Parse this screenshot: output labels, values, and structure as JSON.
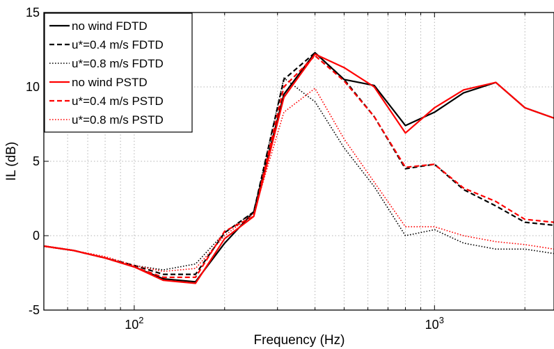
{
  "chart_data": {
    "type": "line",
    "title": "",
    "xlabel": "Frequency (Hz)",
    "ylabel": "IL (dB)",
    "xscale": "log",
    "xlim": [
      50,
      2500
    ],
    "ylim": [
      -5,
      15
    ],
    "x_ticks": [
      {
        "value": 100,
        "base": "10",
        "exp": "2"
      },
      {
        "value": 1000,
        "base": "10",
        "exp": "3"
      }
    ],
    "y_ticks": [
      -5,
      0,
      5,
      10,
      15
    ],
    "grid": true,
    "legend_position": "top-left",
    "x": [
      50,
      63,
      80,
      100,
      125,
      160,
      200,
      250,
      315,
      400,
      500,
      630,
      800,
      1000,
      1250,
      1600,
      2000,
      2500
    ],
    "series": [
      {
        "name": "no wind FDTD",
        "color": "#000000",
        "dash": "solid",
        "values": [
          -0.7,
          -1.0,
          -1.5,
          -2.1,
          -2.9,
          -3.1,
          -0.5,
          1.6,
          9.5,
          12.3,
          10.5,
          10.1,
          7.4,
          8.3,
          9.6,
          10.3,
          8.6,
          7.9
        ]
      },
      {
        "name": "u*=0.4 m/s FDTD",
        "color": "#000000",
        "dash": "dashed",
        "values": [
          -0.7,
          -1.0,
          -1.5,
          -2.0,
          -2.6,
          -2.6,
          0.2,
          1.6,
          10.5,
          12.3,
          10.5,
          8.0,
          4.5,
          4.8,
          3.1,
          2.0,
          0.9,
          0.7
        ]
      },
      {
        "name": "u*=0.8 m/s FDTD",
        "color": "#000000",
        "dash": "dotted",
        "values": [
          -0.7,
          -1.0,
          -1.5,
          -2.0,
          -2.3,
          -1.9,
          0.2,
          1.6,
          10.6,
          9.0,
          5.9,
          3.3,
          0.0,
          0.4,
          -0.5,
          -0.9,
          -0.9,
          -1.2
        ]
      },
      {
        "name": "no wind PSTD",
        "color": "#ff0000",
        "dash": "solid",
        "values": [
          -0.7,
          -1.0,
          -1.5,
          -2.1,
          -3.0,
          -3.2,
          -0.2,
          1.3,
          9.3,
          12.2,
          11.3,
          10.0,
          6.9,
          8.6,
          9.8,
          10.3,
          8.6,
          7.9
        ]
      },
      {
        "name": "u*=0.4 m/s PSTD",
        "color": "#ff0000",
        "dash": "dashed",
        "values": [
          -0.7,
          -1.0,
          -1.5,
          -2.1,
          -2.8,
          -2.8,
          0.3,
          1.3,
          10.0,
          12.1,
          10.4,
          8.0,
          4.6,
          4.8,
          3.2,
          2.3,
          1.1,
          0.9
        ]
      },
      {
        "name": "u*=0.8 m/s PSTD",
        "color": "#ff0000",
        "dash": "dotted",
        "values": [
          -0.7,
          -1.0,
          -1.4,
          -2.0,
          -2.4,
          -2.2,
          0.0,
          1.5,
          8.3,
          9.9,
          6.5,
          3.6,
          0.6,
          0.6,
          0.0,
          -0.4,
          -0.6,
          -0.9
        ]
      }
    ]
  }
}
